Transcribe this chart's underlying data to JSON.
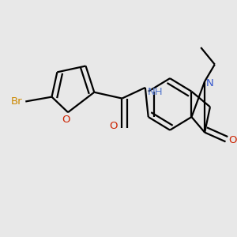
{
  "background_color": "#e8e8e8",
  "bond_lw": 1.6,
  "dbo": 0.018,
  "figsize": [
    3.0,
    3.0
  ],
  "dpi": 100,
  "xlim": [
    0,
    300
  ],
  "ylim": [
    0,
    300
  ]
}
